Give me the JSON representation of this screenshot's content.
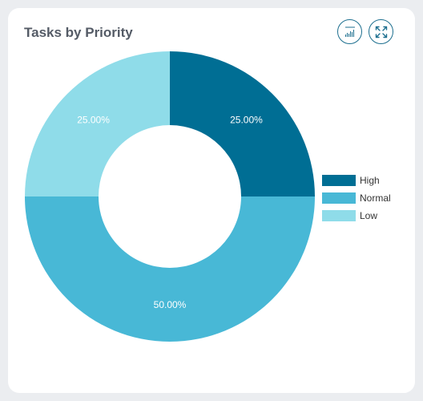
{
  "card": {
    "title": "Tasks by Priority",
    "actions": [
      {
        "name": "chart-type-button",
        "icon": "bar-chart-icon"
      },
      {
        "name": "fullscreen-button",
        "icon": "expand-icon"
      }
    ]
  },
  "chart_data": {
    "type": "pie",
    "variant": "donut",
    "categories": [
      "High",
      "Normal",
      "Low"
    ],
    "values": [
      25,
      50,
      25
    ],
    "labels": [
      "25.00%",
      "50.00%",
      "25.00%"
    ],
    "colors": [
      "#006e94",
      "#48b8d6",
      "#8fdce9"
    ],
    "legend_position": "right"
  }
}
